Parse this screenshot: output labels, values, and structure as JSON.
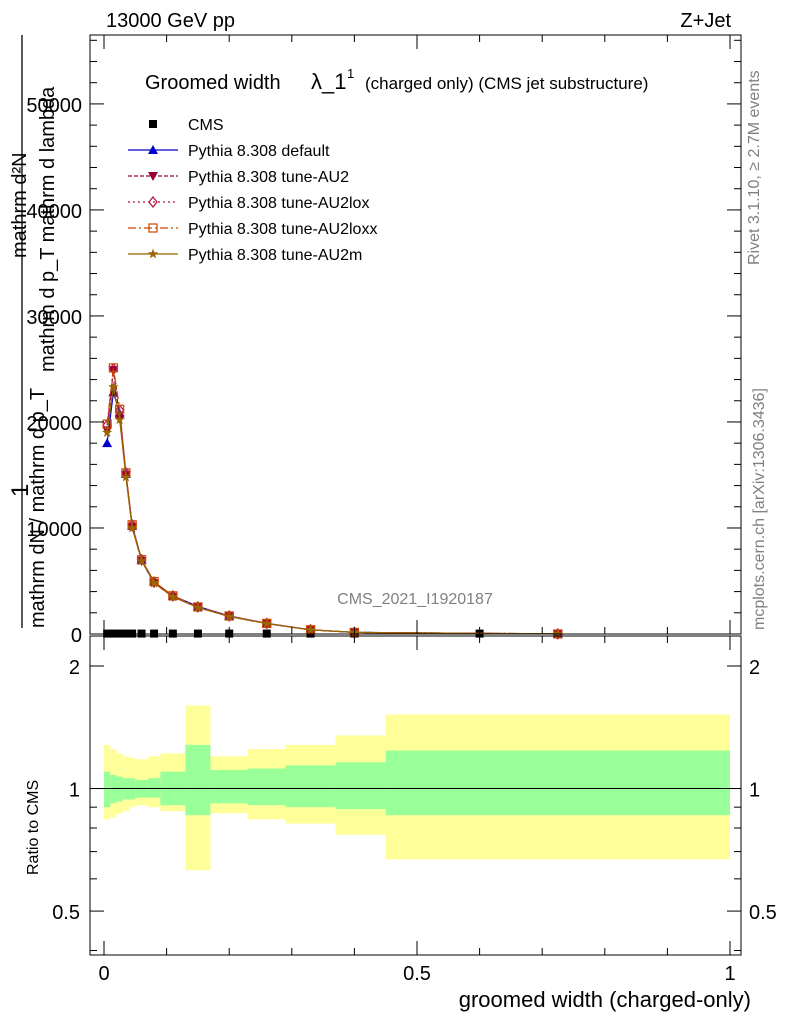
{
  "header": {
    "left": "13000 GeV pp",
    "right": "Z+Jet"
  },
  "side_labels": {
    "rivet": "Rivet 3.1.10, ≥ 2.7M events",
    "mcplots": "mcplots.cern.ch [arXiv:1306.3436]"
  },
  "watermark": "CMS_2021_I1920187",
  "chart_data": [
    {
      "type": "line",
      "panel": "main",
      "title": "Groomed width",
      "title_symbol": "λ_1",
      "title_sup": "1",
      "title_suffix": "(charged only) (CMS jet substructure)",
      "ylabel_line1": "mathrm d²N",
      "ylabel_frac_num": "mathrm d p_T mathrm d lambda",
      "ylabel_one": "1",
      "ylabel_frac_den": "mathrm dN / mathrm d p_T",
      "xlim": [
        0,
        1
      ],
      "ylim": [
        0,
        56500
      ],
      "yticks": [
        0,
        10000,
        20000,
        30000,
        40000,
        50000
      ],
      "ytick_labels": [
        "0",
        "10000",
        "20000",
        "30000",
        "40000",
        "50000"
      ],
      "legend_position": "top-left",
      "cms_x": [
        0.005,
        0.015,
        0.025,
        0.035,
        0.045,
        0.06,
        0.08,
        0.11,
        0.15,
        0.2,
        0.26,
        0.33,
        0.4,
        0.6
      ],
      "series": [
        {
          "name": "CMS",
          "color": "#000000",
          "marker": "square",
          "dash": "none",
          "x": [
            0.005,
            0.015,
            0.025,
            0.035,
            0.045,
            0.06,
            0.08,
            0.11,
            0.15,
            0.2,
            0.26,
            0.33,
            0.4,
            0.6
          ],
          "y": [
            40,
            40,
            40,
            40,
            40,
            40,
            40,
            40,
            40,
            40,
            40,
            40,
            40,
            40
          ]
        },
        {
          "name": "Pythia 8.308 default",
          "color": "#0000cc",
          "marker": "triangle-up",
          "dash": "none",
          "x": [
            0.005,
            0.015,
            0.025,
            0.035,
            0.045,
            0.06,
            0.08,
            0.11,
            0.15,
            0.2,
            0.26,
            0.33,
            0.4,
            0.725
          ],
          "y": [
            18000,
            22800,
            20800,
            15100,
            10200,
            7000,
            4900,
            3600,
            2600,
            1700,
            1000,
            400,
            150,
            5
          ]
        },
        {
          "name": "Pythia 8.308 tune-AU2",
          "color": "#990033",
          "marker": "triangle-down",
          "dash": "4,2",
          "x": [
            0.005,
            0.015,
            0.025,
            0.035,
            0.045,
            0.06,
            0.08,
            0.11,
            0.15,
            0.2,
            0.26,
            0.33,
            0.4,
            0.725
          ],
          "y": [
            19200,
            24900,
            20300,
            15000,
            10100,
            6900,
            4800,
            3500,
            2500,
            1650,
            980,
            390,
            150,
            5
          ]
        },
        {
          "name": "Pythia 8.308 tune-AU2lox",
          "color": "#b3103a",
          "marker": "diamond-open",
          "dash": "2,3",
          "x": [
            0.005,
            0.015,
            0.025,
            0.035,
            0.045,
            0.06,
            0.08,
            0.11,
            0.15,
            0.2,
            0.26,
            0.33,
            0.4,
            0.725
          ],
          "y": [
            19700,
            25000,
            21100,
            15200,
            10300,
            7000,
            4900,
            3600,
            2550,
            1700,
            1000,
            400,
            150,
            5
          ]
        },
        {
          "name": "Pythia 8.308 tune-AU2loxx",
          "color": "#cc4400",
          "marker": "square-open",
          "dash": "8,3,2,3",
          "x": [
            0.005,
            0.015,
            0.025,
            0.035,
            0.045,
            0.06,
            0.08,
            0.11,
            0.15,
            0.2,
            0.26,
            0.33,
            0.4,
            0.725
          ],
          "y": [
            19800,
            25100,
            21200,
            15200,
            10300,
            7000,
            4950,
            3600,
            2550,
            1700,
            1000,
            400,
            150,
            5
          ]
        },
        {
          "name": "Pythia 8.308 tune-AU2m",
          "color": "#996600",
          "marker": "star",
          "dash": "none",
          "x": [
            0.005,
            0.015,
            0.025,
            0.035,
            0.045,
            0.06,
            0.08,
            0.11,
            0.15,
            0.2,
            0.26,
            0.33,
            0.4,
            0.725
          ],
          "y": [
            19000,
            23300,
            20200,
            14800,
            10000,
            6900,
            4800,
            3500,
            2500,
            1650,
            980,
            390,
            150,
            5
          ]
        }
      ]
    },
    {
      "type": "area",
      "panel": "ratio",
      "ylabel": "Ratio to CMS",
      "xlabel": "groomed width (charged-only)",
      "xlim": [
        0,
        1
      ],
      "ylim": [
        0.39,
        2.37
      ],
      "xticks": [
        0,
        0.5,
        1
      ],
      "xtick_labels": [
        "0",
        "0.5",
        "1"
      ],
      "yticks": [
        0.5,
        1,
        2
      ],
      "ytick_labels": [
        "0.5",
        "1",
        "2"
      ],
      "reference_line": 1,
      "bins": [
        0,
        0.01,
        0.02,
        0.03,
        0.04,
        0.05,
        0.07,
        0.09,
        0.13,
        0.17,
        0.23,
        0.29,
        0.37,
        0.45,
        1.0
      ],
      "inner_band": {
        "color": "#99ff99",
        "lo": [
          0.9,
          0.92,
          0.93,
          0.94,
          0.94,
          0.95,
          0.95,
          0.91,
          0.86,
          0.92,
          0.91,
          0.9,
          0.89,
          0.86
        ],
        "hi": [
          1.1,
          1.08,
          1.07,
          1.06,
          1.06,
          1.05,
          1.06,
          1.1,
          1.28,
          1.11,
          1.12,
          1.14,
          1.16,
          1.24
        ]
      },
      "outer_band": {
        "color": "#ffff99",
        "lo": [
          0.84,
          0.85,
          0.87,
          0.88,
          0.9,
          0.91,
          0.9,
          0.88,
          0.63,
          0.87,
          0.84,
          0.82,
          0.77,
          0.67
        ],
        "hi": [
          1.28,
          1.25,
          1.22,
          1.2,
          1.19,
          1.18,
          1.2,
          1.22,
          1.6,
          1.2,
          1.25,
          1.28,
          1.35,
          1.52
        ]
      }
    }
  ]
}
